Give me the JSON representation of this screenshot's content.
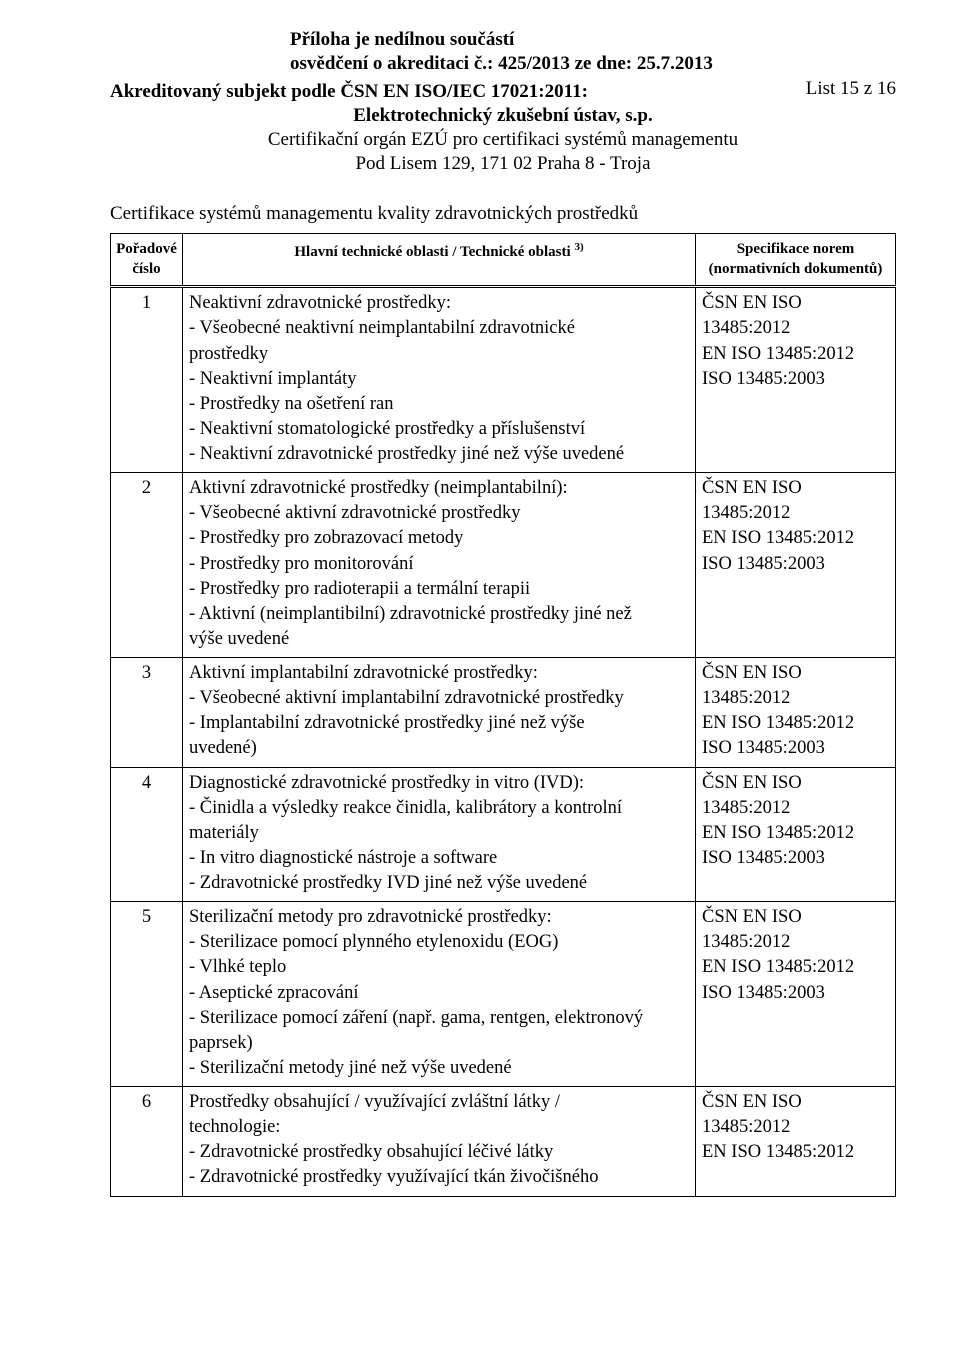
{
  "header": {
    "line1": "Příloha je nedílnou součástí",
    "line2": "osvědčení o akreditaci č.: 425/2013 ze dne: 25.7.2013",
    "listPage": "List 15 z 16"
  },
  "subject": {
    "line": "Akreditovaný subjekt podle ČSN EN ISO/IEC 17021:2011:",
    "name": "Elektrotechnický zkušební ústav, s.p.",
    "sub1": "Certifikační orgán EZÚ pro certifikaci systémů managementu",
    "sub2": "Pod Lisem 129, 171 02  Praha 8 - Troja"
  },
  "sectionTitle": "Certifikace systémů managementu kvality zdravotnických prostředků",
  "tableHeaders": {
    "col1a": "Pořadové",
    "col1b": "číslo",
    "col2": "Hlavní technické oblasti / Technické oblasti ",
    "col2sup": "3)",
    "col3a": "Specifikace norem",
    "col3b": "(normativních dokumentů)"
  },
  "specBlock": {
    "a": "ČSN EN ISO",
    "b": "13485:2012",
    "c": "EN ISO 13485:2012",
    "d": "ISO 13485:2003"
  },
  "specBlockShort": {
    "a": "ČSN EN ISO",
    "b": "13485:2012",
    "c": "EN ISO 13485:2012"
  },
  "rows": [
    {
      "num": "1",
      "lines": [
        "Neaktivní zdravotnické prostředky:",
        "- Všeobecné neaktivní neimplantabilní zdravotnické",
        "prostředky",
        "- Neaktivní implantáty",
        "- Prostředky na ošetření ran",
        "- Neaktivní stomatologické prostředky a příslušenství",
        "- Neaktivní zdravotnické prostředky jiné než výše uvedené"
      ],
      "spec": "full"
    },
    {
      "num": "2",
      "lines": [
        "Aktivní zdravotnické prostředky (neimplantabilní):",
        "- Všeobecné aktivní zdravotnické prostředky",
        "- Prostředky pro zobrazovací metody",
        "- Prostředky pro monitorování",
        "- Prostředky pro radioterapii a termální terapii",
        "- Aktivní (neimplantibilní) zdravotnické prostředky jiné než",
        "výše uvedené"
      ],
      "spec": "full"
    },
    {
      "num": "3",
      "lines": [
        "Aktivní implantabilní zdravotnické prostředky:",
        "- Všeobecné aktivní implantabilní zdravotnické prostředky",
        "- Implantabilní zdravotnické prostředky jiné než výše",
        "uvedené)"
      ],
      "spec": "full"
    },
    {
      "num": "4",
      "lines": [
        "Diagnostické zdravotnické prostředky in vitro (IVD):",
        "- Činidla a výsledky reakce činidla, kalibrátory a kontrolní",
        "materiály",
        "- In vitro diagnostické nástroje a software",
        "- Zdravotnické prostředky IVD jiné než výše uvedené"
      ],
      "spec": "full"
    },
    {
      "num": "5",
      "lines": [
        "Sterilizační metody pro zdravotnické prostředky:",
        "- Sterilizace pomocí plynného etylenoxidu (EOG)",
        "- Vlhké teplo",
        "- Aseptické zpracování",
        "- Sterilizace pomocí záření (např. gama, rentgen, elektronový",
        "paprsek)",
        "- Sterilizační metody jiné než výše uvedené"
      ],
      "spec": "full"
    },
    {
      "num": "6",
      "lines": [
        "Prostředky obsahující / využívající zvláštní látky /",
        "technologie:",
        "- Zdravotnické prostředky obsahující léčivé látky",
        "- Zdravotnické prostředky využívající tkán živočišného"
      ],
      "spec": "short"
    }
  ]
}
